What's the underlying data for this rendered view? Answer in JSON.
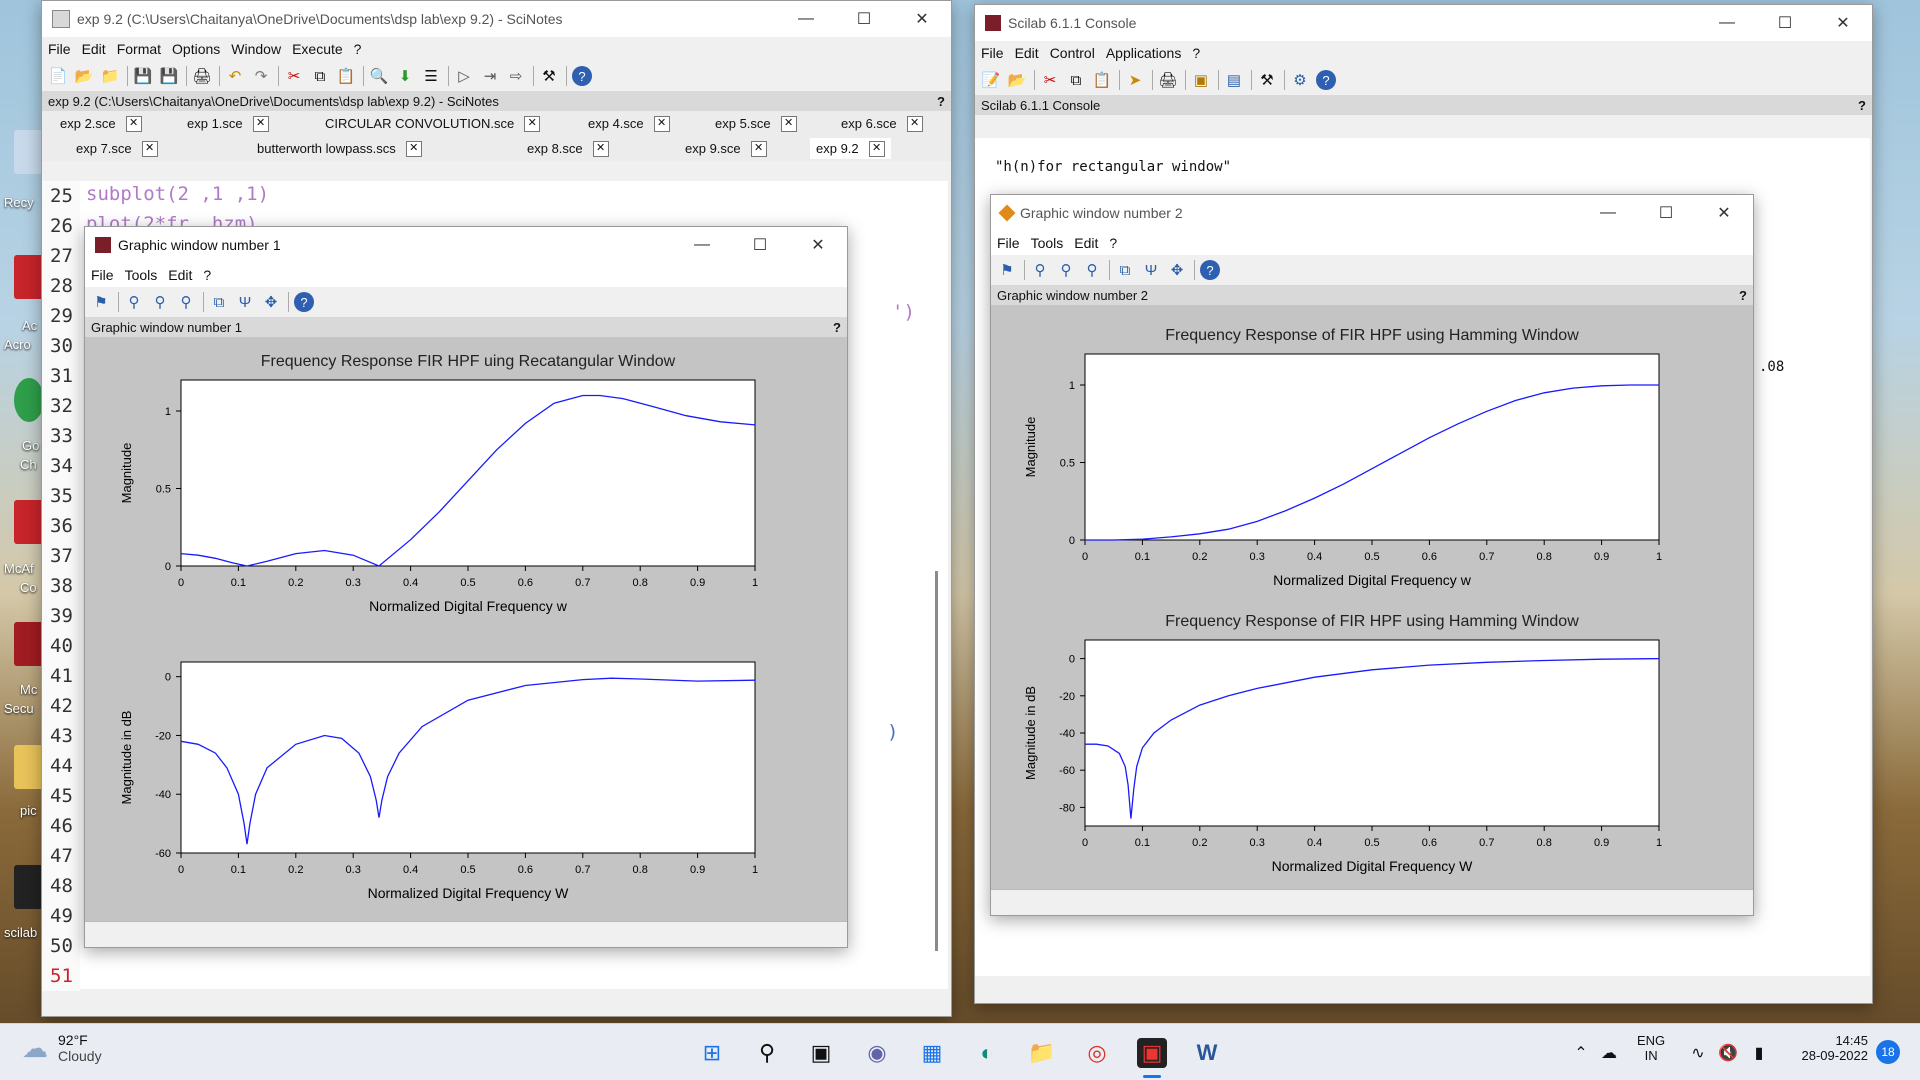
{
  "desktop": {
    "icons": [
      {
        "label": "Recy"
      },
      {
        "label": "Ac"
      },
      {
        "label": "Acro"
      },
      {
        "label": "Go"
      },
      {
        "label": "Ch"
      },
      {
        "label": "McAf"
      },
      {
        "label": "Co"
      },
      {
        "label": "Mc"
      },
      {
        "label": "Secu"
      },
      {
        "label": "pic"
      },
      {
        "label": "scilab"
      }
    ]
  },
  "scinotes": {
    "title": "exp 9.2 (C:\\Users\\Chaitanya\\OneDrive\\Documents\\dsp lab\\exp 9.2) - SciNotes",
    "menu": [
      "File",
      "Edit",
      "Format",
      "Options",
      "Window",
      "Execute",
      "?"
    ],
    "infobar": "exp 9.2 (C:\\Users\\Chaitanya\\OneDrive\\Documents\\dsp lab\\exp 9.2) - SciNotes",
    "info_help": "?",
    "tabs_row1": [
      "exp 2.sce",
      "exp 1.sce",
      "CIRCULAR CONVOLUTION.sce",
      "exp 4.sce",
      "exp 5.sce",
      "exp 6.sce"
    ],
    "tabs_row2": [
      "exp 7.sce",
      "butterworth lowpass.scs",
      "exp 8.sce",
      "exp 9.sce",
      "exp 9.2"
    ],
    "line_numbers": [
      "25",
      "26",
      "27",
      "28",
      "29",
      "30",
      "31",
      "32",
      "33",
      "34",
      "35",
      "36",
      "37",
      "38",
      "39",
      "40",
      "41",
      "42",
      "43",
      "44",
      "45",
      "46",
      "47",
      "48",
      "49",
      "50",
      "51"
    ],
    "code_line25": "subplot(2 ,1 ,1)",
    "code_line26": "plot(2*fr, hzm)",
    "code_fragment": "')",
    "code_fragment2": ")"
  },
  "graphic1": {
    "title": "Graphic window number 1",
    "menu": [
      "File",
      "Tools",
      "Edit",
      "?"
    ],
    "infobar": "Graphic window number 1",
    "info_help": "?"
  },
  "console": {
    "title": "Scilab 6.1.1 Console",
    "menu": [
      "File",
      "Edit",
      "Control",
      "Applications",
      "?"
    ],
    "infobar": "Scilab 6.1.1 Console",
    "info_help": "?",
    "output_line": "\"h(n)for rectangular window\"",
    "output_fragment": ".08"
  },
  "graphic2": {
    "title": "Graphic window number 2",
    "menu": [
      "File",
      "Tools",
      "Edit",
      "?"
    ],
    "infobar": "Graphic window number 2",
    "info_help": "?"
  },
  "chart_data": [
    {
      "type": "line",
      "title": "Frequency Response FIR HPF uing Recatangular Window",
      "xlabel": "Normalized Digital Frequency w",
      "ylabel": "Magnitude",
      "xlim": [
        0,
        1
      ],
      "ylim": [
        0,
        1.2
      ],
      "xticks": [
        "0",
        "0.1",
        "0.2",
        "0.3",
        "0.4",
        "0.5",
        "0.6",
        "0.7",
        "0.8",
        "0.9",
        "1"
      ],
      "yticks": [
        {
          "v": 0,
          "t": "0"
        },
        {
          "v": 0.5,
          "t": "0.5"
        },
        {
          "v": 1,
          "t": "1"
        }
      ],
      "color": "#1a1aff",
      "x": [
        0,
        0.03,
        0.06,
        0.09,
        0.115,
        0.15,
        0.2,
        0.25,
        0.3,
        0.345,
        0.4,
        0.45,
        0.5,
        0.55,
        0.6,
        0.65,
        0.7,
        0.73,
        0.77,
        0.82,
        0.88,
        0.94,
        1.0
      ],
      "y": [
        0.08,
        0.07,
        0.05,
        0.02,
        0.0,
        0.03,
        0.08,
        0.1,
        0.07,
        0.0,
        0.17,
        0.35,
        0.55,
        0.75,
        0.92,
        1.05,
        1.1,
        1.1,
        1.08,
        1.03,
        0.97,
        0.93,
        0.91
      ]
    },
    {
      "type": "line",
      "title": "",
      "xlabel": "Normalized Digital Frequency W",
      "ylabel": "Magnitude in dB",
      "xlim": [
        0,
        1
      ],
      "ylim": [
        -60,
        5
      ],
      "xticks": [
        "0",
        "0.1",
        "0.2",
        "0.3",
        "0.4",
        "0.5",
        "0.6",
        "0.7",
        "0.8",
        "0.9",
        "1"
      ],
      "yticks": [
        {
          "v": 0,
          "t": "0"
        },
        {
          "v": -20,
          "t": "-20"
        },
        {
          "v": -40,
          "t": "-40"
        },
        {
          "v": -60,
          "t": "-60"
        }
      ],
      "color": "#1a1aff",
      "x": [
        0,
        0.03,
        0.06,
        0.08,
        0.1,
        0.11,
        0.115,
        0.12,
        0.13,
        0.15,
        0.2,
        0.25,
        0.28,
        0.31,
        0.33,
        0.34,
        0.345,
        0.35,
        0.36,
        0.38,
        0.42,
        0.5,
        0.6,
        0.7,
        0.75,
        0.8,
        0.9,
        1.0
      ],
      "y": [
        -22,
        -23,
        -26,
        -31,
        -40,
        -50,
        -57,
        -50,
        -40,
        -31,
        -23,
        -20,
        -21,
        -26,
        -34,
        -42,
        -48,
        -42,
        -34,
        -26,
        -17,
        -8,
        -3,
        -1,
        -0.5,
        -0.8,
        -1.5,
        -1.2
      ]
    },
    {
      "type": "line",
      "title": "Frequency Response of FIR HPF using Hamming Window",
      "xlabel": "Normalized Digital Frequency w",
      "ylabel": "Magnitude",
      "xlim": [
        0,
        1
      ],
      "ylim": [
        0,
        1.2
      ],
      "xticks": [
        "0",
        "0.1",
        "0.2",
        "0.3",
        "0.4",
        "0.5",
        "0.6",
        "0.7",
        "0.8",
        "0.9",
        "1"
      ],
      "yticks": [
        {
          "v": 0,
          "t": "0"
        },
        {
          "v": 0.5,
          "t": "0.5"
        },
        {
          "v": 1,
          "t": "1"
        }
      ],
      "color": "#1a1aff",
      "x": [
        0,
        0.05,
        0.1,
        0.15,
        0.2,
        0.25,
        0.3,
        0.35,
        0.4,
        0.45,
        0.5,
        0.55,
        0.6,
        0.65,
        0.7,
        0.75,
        0.8,
        0.85,
        0.9,
        0.95,
        1.0
      ],
      "y": [
        0,
        0.0,
        0.005,
        0.02,
        0.04,
        0.07,
        0.12,
        0.19,
        0.27,
        0.36,
        0.46,
        0.56,
        0.66,
        0.75,
        0.83,
        0.9,
        0.95,
        0.98,
        0.995,
        1.0,
        1.0
      ]
    },
    {
      "type": "line",
      "title": "Frequency Response of FIR HPF using Hamming Window",
      "xlabel": "Normalized Digital Frequency W",
      "ylabel": "Magnitude in dB",
      "xlim": [
        0,
        1
      ],
      "ylim": [
        -90,
        10
      ],
      "xticks": [
        "0",
        "0.1",
        "0.2",
        "0.3",
        "0.4",
        "0.5",
        "0.6",
        "0.7",
        "0.8",
        "0.9",
        "1"
      ],
      "yticks": [
        {
          "v": 0,
          "t": "0"
        },
        {
          "v": -20,
          "t": "-20"
        },
        {
          "v": -40,
          "t": "-40"
        },
        {
          "v": -60,
          "t": "-60"
        },
        {
          "v": -80,
          "t": "-80"
        }
      ],
      "color": "#1a1aff",
      "x": [
        0,
        0.02,
        0.04,
        0.06,
        0.07,
        0.075,
        0.08,
        0.085,
        0.09,
        0.1,
        0.12,
        0.15,
        0.2,
        0.25,
        0.3,
        0.4,
        0.5,
        0.6,
        0.7,
        0.8,
        0.9,
        1.0
      ],
      "y": [
        -46,
        -46,
        -47,
        -51,
        -58,
        -68,
        -86,
        -70,
        -58,
        -48,
        -40,
        -33,
        -25,
        -20,
        -16,
        -10,
        -6,
        -3.5,
        -2,
        -1,
        -0.3,
        0
      ]
    }
  ],
  "taskbar": {
    "temperature": "92°F",
    "weather": "Cloudy",
    "lang_top": "ENG",
    "lang_bottom": "IN",
    "time": "14:45",
    "date": "28-09-2022",
    "notification_count": "18"
  }
}
